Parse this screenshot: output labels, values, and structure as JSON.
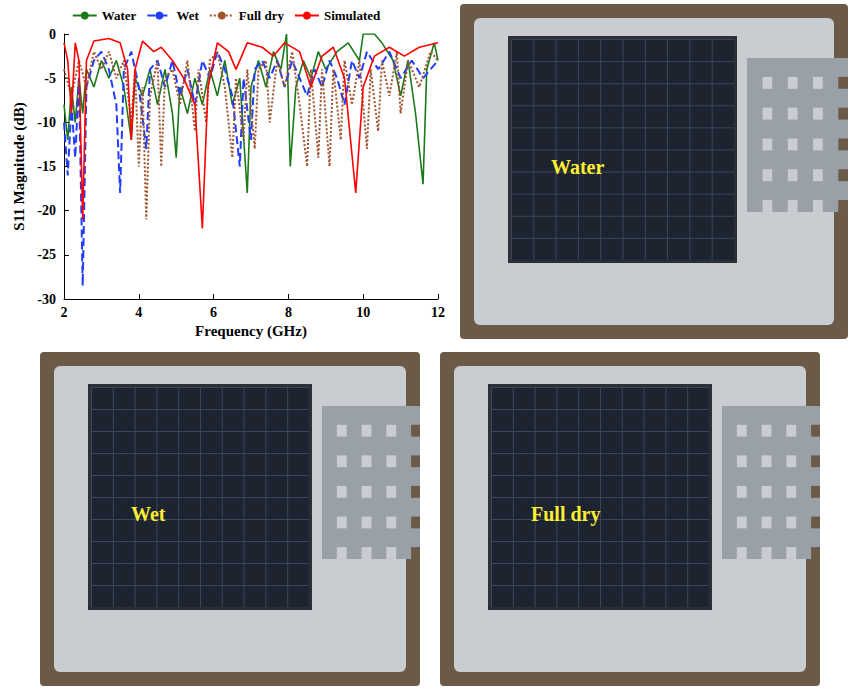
{
  "chart_data": {
    "type": "line",
    "x_label": "Frequency (GHz)",
    "y_label": "S11 Magnitude (dB)",
    "xlim": [
      2,
      12
    ],
    "xticks": [
      2,
      4,
      6,
      8,
      10,
      12
    ],
    "ylim": [
      -30,
      0
    ],
    "yticks": [
      -30,
      -25,
      -20,
      -15,
      -10,
      -5,
      0
    ],
    "grid": false,
    "legend": "top",
    "series": [
      {
        "name": "Water",
        "color": "#1a7a1a",
        "line_style": "solid",
        "values": [
          [
            2,
            -8
          ],
          [
            2.1,
            -12
          ],
          [
            2.2,
            -6
          ],
          [
            2.3,
            -10
          ],
          [
            2.4,
            -5
          ],
          [
            2.5,
            -9
          ],
          [
            2.6,
            -4
          ],
          [
            2.8,
            -6
          ],
          [
            3,
            -3
          ],
          [
            3.2,
            -5
          ],
          [
            3.4,
            -3
          ],
          [
            3.6,
            -6
          ],
          [
            3.8,
            -12
          ],
          [
            3.9,
            -5
          ],
          [
            4.1,
            -7
          ],
          [
            4.3,
            -4
          ],
          [
            4.5,
            -8
          ],
          [
            4.7,
            -4
          ],
          [
            4.9,
            -9
          ],
          [
            5.0,
            -14
          ],
          [
            5.1,
            -6
          ],
          [
            5.3,
            -9
          ],
          [
            5.5,
            -5
          ],
          [
            5.7,
            -8
          ],
          [
            5.9,
            -4
          ],
          [
            6.1,
            -7
          ],
          [
            6.3,
            -3
          ],
          [
            6.5,
            -8
          ],
          [
            6.7,
            -5
          ],
          [
            6.9,
            -18
          ],
          [
            7.0,
            -6
          ],
          [
            7.2,
            -3
          ],
          [
            7.4,
            -6
          ],
          [
            7.6,
            -2
          ],
          [
            7.8,
            -4
          ],
          [
            7.95,
            0
          ],
          [
            8.05,
            -15
          ],
          [
            8.2,
            -6
          ],
          [
            8.4,
            -3
          ],
          [
            8.6,
            -5
          ],
          [
            8.8,
            -2
          ],
          [
            9.0,
            -4
          ],
          [
            9.3,
            -2
          ],
          [
            9.6,
            -1
          ],
          [
            9.9,
            -3
          ],
          [
            10.0,
            0
          ],
          [
            10.3,
            0
          ],
          [
            10.5,
            -1
          ],
          [
            10.8,
            -3
          ],
          [
            11.0,
            -7
          ],
          [
            11.2,
            -3
          ],
          [
            11.4,
            -9
          ],
          [
            11.6,
            -17
          ],
          [
            11.7,
            -4
          ],
          [
            11.9,
            -1
          ],
          [
            12,
            -3
          ]
        ]
      },
      {
        "name": "Wet",
        "color": "#1f3cff",
        "line_style": "dashed",
        "values": [
          [
            2,
            -10
          ],
          [
            2.1,
            -16
          ],
          [
            2.2,
            -8
          ],
          [
            2.3,
            -14
          ],
          [
            2.4,
            -5
          ],
          [
            2.5,
            -28.5
          ],
          [
            2.6,
            -6
          ],
          [
            2.8,
            -3
          ],
          [
            3.0,
            -2
          ],
          [
            3.2,
            -4
          ],
          [
            3.4,
            -8
          ],
          [
            3.5,
            -18
          ],
          [
            3.6,
            -4
          ],
          [
            3.8,
            -2
          ],
          [
            4.0,
            -6
          ],
          [
            4.2,
            -13
          ],
          [
            4.3,
            -4
          ],
          [
            4.5,
            -3
          ],
          [
            4.7,
            -6
          ],
          [
            4.9,
            -3
          ],
          [
            5.1,
            -7
          ],
          [
            5.3,
            -4
          ],
          [
            5.5,
            -8
          ],
          [
            5.7,
            -3
          ],
          [
            5.9,
            -5
          ],
          [
            6.1,
            -2
          ],
          [
            6.3,
            -4
          ],
          [
            6.5,
            -7
          ],
          [
            6.7,
            -15
          ],
          [
            6.8,
            -5
          ],
          [
            7.0,
            -12
          ],
          [
            7.1,
            -4
          ],
          [
            7.3,
            -3
          ],
          [
            7.5,
            -5
          ],
          [
            7.7,
            -3
          ],
          [
            7.9,
            -6
          ],
          [
            8.1,
            -3
          ],
          [
            8.3,
            -5
          ],
          [
            8.5,
            -7
          ],
          [
            8.7,
            -4
          ],
          [
            8.9,
            -6
          ],
          [
            9.1,
            -3
          ],
          [
            9.3,
            -5
          ],
          [
            9.5,
            -8
          ],
          [
            9.7,
            -3
          ],
          [
            9.9,
            -5
          ],
          [
            10.1,
            -2
          ],
          [
            10.4,
            -4
          ],
          [
            10.7,
            -2
          ],
          [
            11.0,
            -5
          ],
          [
            11.3,
            -3
          ],
          [
            11.6,
            -5
          ],
          [
            12,
            -3
          ]
        ]
      },
      {
        "name": "Full dry",
        "color": "#a0522d",
        "line_style": "dotted",
        "values": [
          [
            2,
            -4
          ],
          [
            2.2,
            -7
          ],
          [
            2.4,
            -3
          ],
          [
            2.6,
            -6
          ],
          [
            2.8,
            -2
          ],
          [
            3.0,
            -4
          ],
          [
            3.2,
            -2
          ],
          [
            3.4,
            -5
          ],
          [
            3.6,
            -3
          ],
          [
            3.8,
            -10
          ],
          [
            3.9,
            -4
          ],
          [
            4.0,
            -15
          ],
          [
            4.1,
            -6
          ],
          [
            4.2,
            -21
          ],
          [
            4.3,
            -7
          ],
          [
            4.5,
            -3
          ],
          [
            4.6,
            -15
          ],
          [
            4.7,
            -5
          ],
          [
            4.9,
            -4
          ],
          [
            5.1,
            -8
          ],
          [
            5.3,
            -3
          ],
          [
            5.5,
            -11
          ],
          [
            5.6,
            -4
          ],
          [
            5.8,
            -10
          ],
          [
            5.9,
            -3
          ],
          [
            6.1,
            -2
          ],
          [
            6.3,
            -6
          ],
          [
            6.5,
            -14
          ],
          [
            6.6,
            -5
          ],
          [
            6.8,
            -12
          ],
          [
            6.9,
            -4
          ],
          [
            7.1,
            -13
          ],
          [
            7.2,
            -4
          ],
          [
            7.4,
            -3
          ],
          [
            7.5,
            -10
          ],
          [
            7.7,
            -3
          ],
          [
            7.9,
            -6
          ],
          [
            8.1,
            -2
          ],
          [
            8.3,
            -8
          ],
          [
            8.5,
            -15
          ],
          [
            8.6,
            -4
          ],
          [
            8.8,
            -14
          ],
          [
            8.9,
            -4
          ],
          [
            9.1,
            -15
          ],
          [
            9.2,
            -4
          ],
          [
            9.4,
            -12
          ],
          [
            9.5,
            -3
          ],
          [
            9.7,
            -8
          ],
          [
            9.9,
            -3
          ],
          [
            10.1,
            -13
          ],
          [
            10.2,
            -4
          ],
          [
            10.4,
            -11
          ],
          [
            10.5,
            -3
          ],
          [
            10.7,
            -7
          ],
          [
            10.9,
            -2
          ],
          [
            11.0,
            -9
          ],
          [
            11.2,
            -3
          ],
          [
            11.5,
            -6
          ],
          [
            11.8,
            -2
          ],
          [
            12,
            -3
          ]
        ]
      },
      {
        "name": "Simulated",
        "color": "#ff0000",
        "line_style": "solid",
        "values": [
          [
            2,
            -1
          ],
          [
            2.1,
            -3
          ],
          [
            2.2,
            -9
          ],
          [
            2.3,
            -1
          ],
          [
            2.4,
            -3
          ],
          [
            2.5,
            -21
          ],
          [
            2.6,
            -3
          ],
          [
            2.8,
            -0.8
          ],
          [
            3.2,
            -0.5
          ],
          [
            3.5,
            -1
          ],
          [
            3.7,
            -4
          ],
          [
            3.8,
            -12
          ],
          [
            3.9,
            -4
          ],
          [
            4.1,
            -0.8
          ],
          [
            4.4,
            -2
          ],
          [
            4.6,
            -1.5
          ],
          [
            4.9,
            -3
          ],
          [
            5.2,
            -5
          ],
          [
            5.5,
            -8
          ],
          [
            5.7,
            -22
          ],
          [
            5.85,
            -6
          ],
          [
            6.1,
            -1
          ],
          [
            6.4,
            -2
          ],
          [
            6.6,
            -4
          ],
          [
            6.9,
            -1
          ],
          [
            7.3,
            -1.5
          ],
          [
            7.6,
            -2.5
          ],
          [
            7.9,
            -1
          ],
          [
            8.3,
            -2
          ],
          [
            8.6,
            -6
          ],
          [
            8.9,
            -2.5
          ],
          [
            9.2,
            -1.5
          ],
          [
            9.5,
            -5
          ],
          [
            9.8,
            -18
          ],
          [
            10.0,
            -6
          ],
          [
            10.3,
            -2.5
          ],
          [
            10.7,
            -1.5
          ],
          [
            11.1,
            -2.5
          ],
          [
            11.5,
            -1.5
          ],
          [
            12,
            -1
          ]
        ]
      }
    ]
  },
  "photos": [
    "Water",
    "Wet",
    "Full dry"
  ]
}
